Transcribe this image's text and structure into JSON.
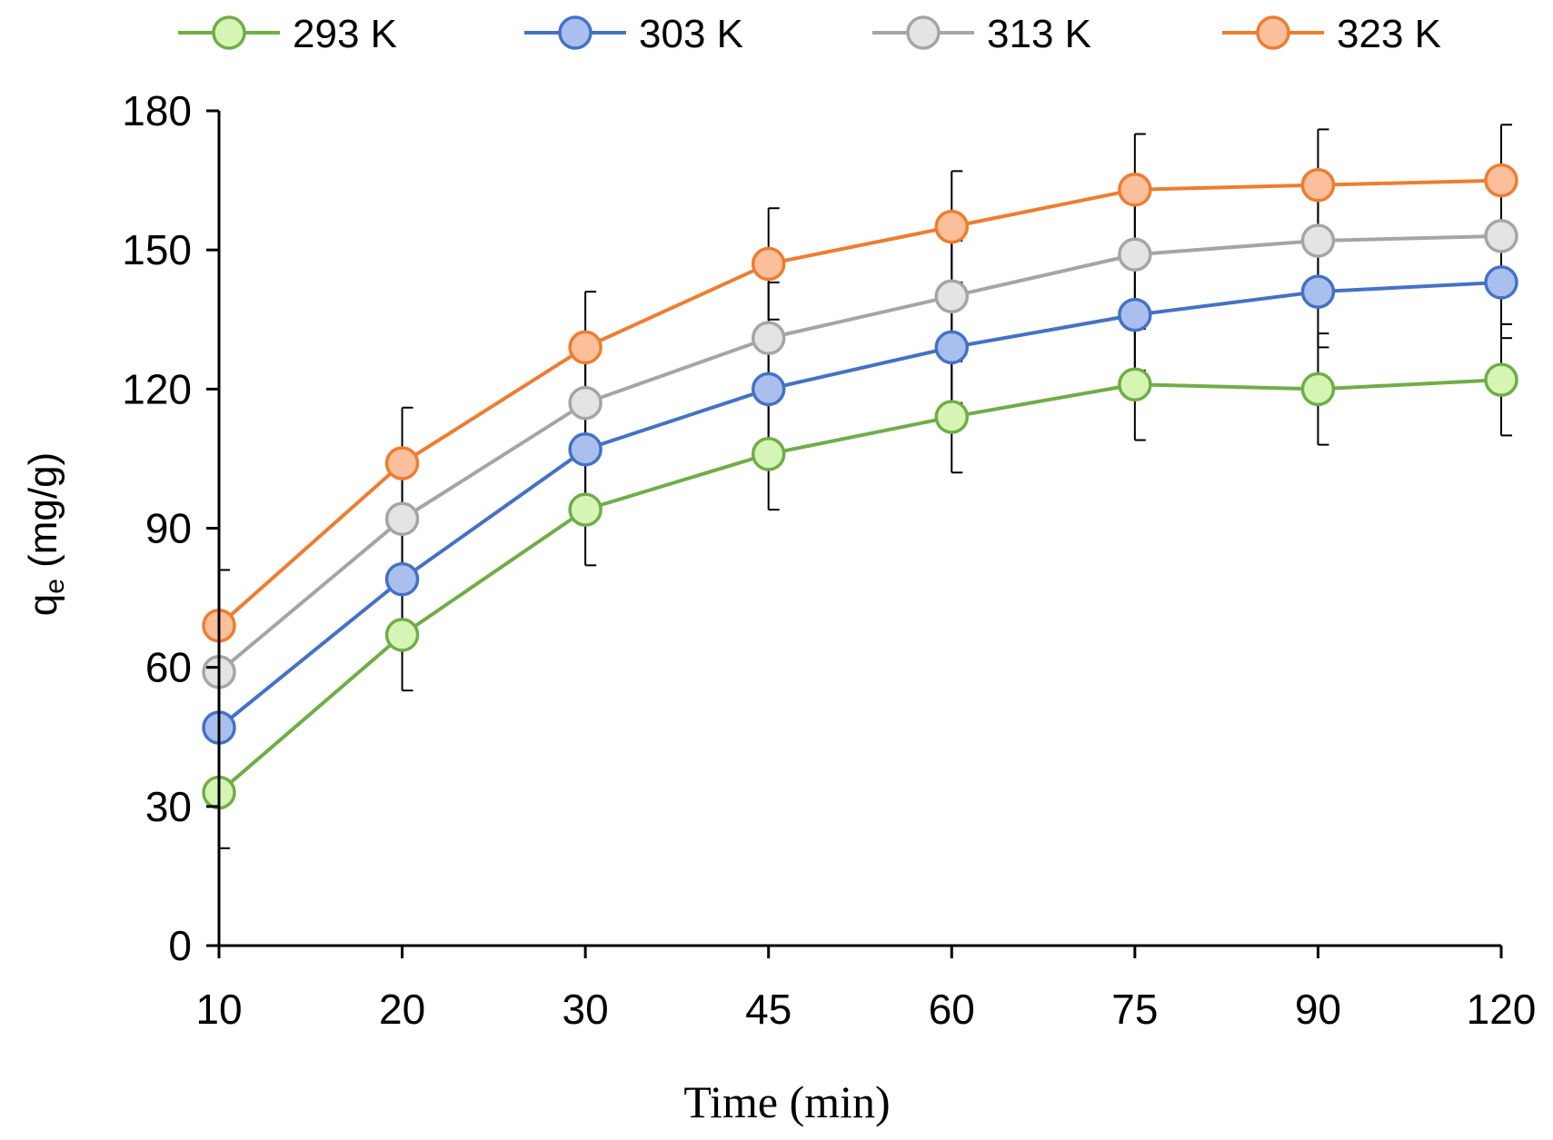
{
  "chart_data": {
    "type": "line",
    "categories": [
      "10",
      "20",
      "30",
      "45",
      "60",
      "75",
      "90",
      "120"
    ],
    "xlabel": "Time (min)",
    "ylabel_main": "q",
    "ylabel_sub": "e",
    "ylabel_unit": " (mg/g)",
    "ylim": [
      0,
      180
    ],
    "yticks": [
      0,
      30,
      60,
      90,
      120,
      150,
      180
    ],
    "grid": false,
    "legend_position": "top",
    "error_bar": 12,
    "series": [
      {
        "name": "293 K",
        "line_color": "#70ad47",
        "fill_color": "#d5f5b5",
        "values": [
          33,
          67,
          94,
          106,
          114,
          121,
          120,
          122
        ]
      },
      {
        "name": "303 K",
        "line_color": "#4472c4",
        "fill_color": "#a9c0ef",
        "values": [
          47,
          79,
          107,
          120,
          129,
          136,
          141,
          143
        ]
      },
      {
        "name": "313 K",
        "line_color": "#a5a5a5",
        "fill_color": "#e4e4e4",
        "values": [
          59,
          92,
          117,
          131,
          140,
          149,
          152,
          153
        ]
      },
      {
        "name": "323 K",
        "line_color": "#ed7d31",
        "fill_color": "#fbbf9b",
        "values": [
          69,
          104,
          129,
          147,
          155,
          163,
          164,
          165
        ]
      }
    ]
  }
}
